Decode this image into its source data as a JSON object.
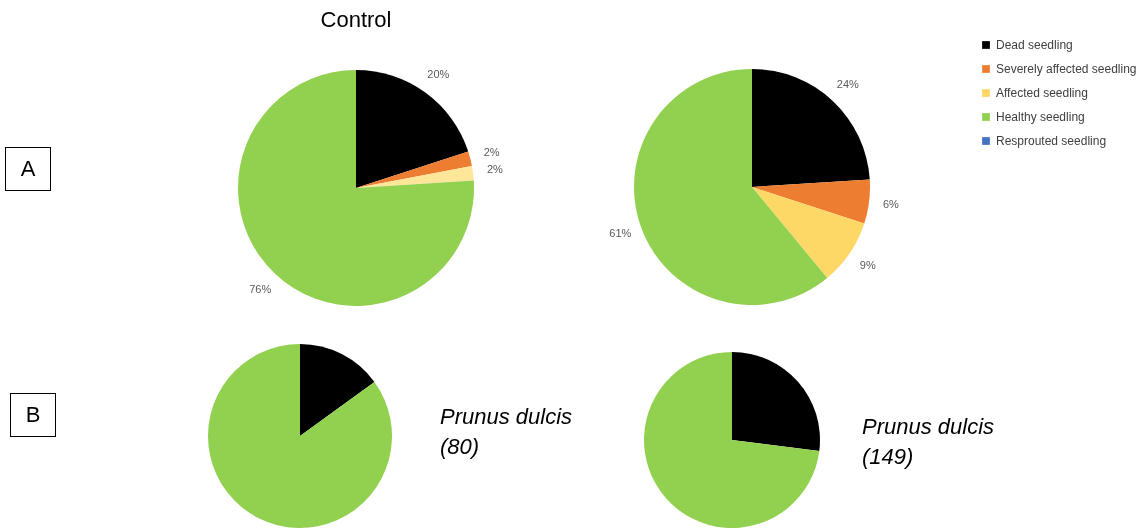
{
  "chart_data": [
    {
      "type": "pie",
      "title": "Control",
      "categories": [
        null,
        null,
        null,
        null,
        null
      ],
      "values": [
        20,
        2,
        2,
        76,
        0
      ],
      "value_labels": [
        "20%",
        "2%",
        "2%",
        "76%",
        null
      ],
      "colors": [
        "#000000",
        "#ed7d31",
        "#ffe699",
        "#92d050",
        "#4472c4"
      ],
      "legend": false,
      "annotations": [
        "A"
      ]
    },
    {
      "type": "pie",
      "categories": [
        "Dead seedling",
        "Severely affected seedling",
        "Affected seedling",
        "Healthy seedling",
        "Resprouted seedling"
      ],
      "values": [
        24,
        6,
        9,
        61,
        0
      ],
      "value_labels": [
        "24%",
        "6%",
        "9%",
        "61%",
        null
      ],
      "colors": [
        "#000000",
        "#ed7d31",
        "#fdd866",
        "#92d050",
        "#4472c4"
      ],
      "legend": "right"
    },
    {
      "type": "pie",
      "categories": [
        null,
        null
      ],
      "values": [
        15,
        85
      ],
      "colors": [
        "#000000",
        "#92d050"
      ],
      "legend": false,
      "annotations": [
        "B",
        "Prunus dulcis (80)"
      ]
    },
    {
      "type": "pie",
      "categories": [
        null,
        null
      ],
      "values": [
        27,
        73
      ],
      "colors": [
        "#000000",
        "#92d050"
      ],
      "legend": false,
      "annotations": [
        "Prunus dulcis (149)"
      ]
    }
  ]
}
